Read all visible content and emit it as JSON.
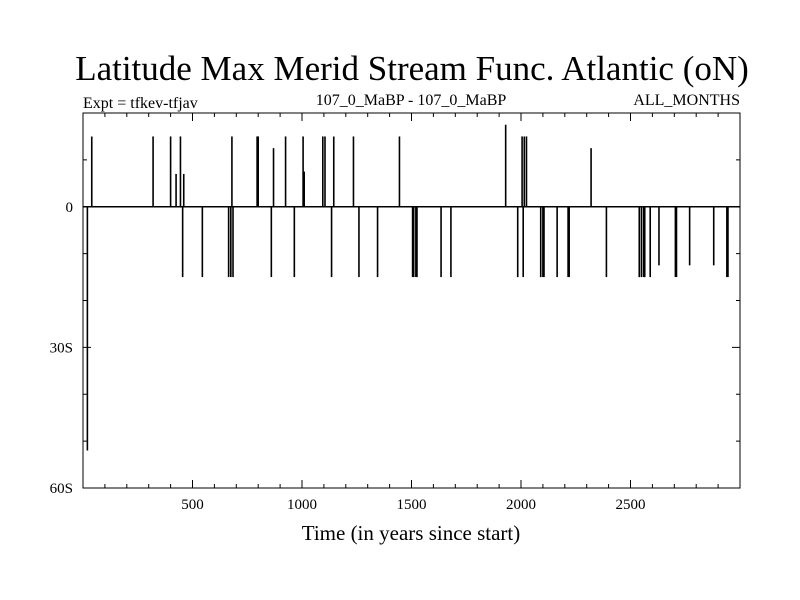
{
  "chart_data": {
    "type": "bar",
    "title": "Latitude Max Merid Stream Func. Atlantic (oN)",
    "subtitle_left": "Expt = tfkev-tfjav",
    "subtitle_center": "107_0_MaBP - 107_0_MaBP",
    "subtitle_right": "ALL_MONTHS",
    "xlabel": "Time (in years since start)",
    "ylabel": "",
    "xlim": [
      0,
      3000
    ],
    "ylim": [
      -60,
      20
    ],
    "x_ticks": [
      500,
      1000,
      1500,
      2000,
      2500
    ],
    "x_tick_labels": [
      "500",
      "1000",
      "1500",
      "2000",
      "2500"
    ],
    "y_ticks": [
      0,
      -30,
      -60
    ],
    "y_tick_labels": [
      "0",
      "30S",
      "60S"
    ],
    "grid": false,
    "zero_line": true,
    "series": [
      {
        "x": [
          20,
          40,
          320,
          400,
          425,
          445,
          455,
          460,
          545,
          665,
          675,
          680,
          685,
          795,
          800,
          860,
          870,
          925,
          965,
          1005,
          1010,
          1095,
          1105,
          1135,
          1145,
          1235,
          1260,
          1345,
          1445,
          1505,
          1510,
          1520,
          1525,
          1635,
          1680,
          1930,
          1985,
          2005,
          2010,
          2015,
          2025,
          2090,
          2100,
          2105,
          2165,
          2215,
          2220,
          2320,
          2390,
          2540,
          2550,
          2560,
          2565,
          2590,
          2630,
          2705,
          2710,
          2770,
          2880,
          2940,
          2945
        ],
        "values": [
          -52,
          15,
          15,
          15,
          7,
          15,
          -15,
          7,
          -15,
          -15,
          -15,
          15,
          -15,
          15,
          15,
          -15,
          12.5,
          15,
          -15,
          15,
          7.5,
          15,
          15,
          -15,
          15,
          15,
          -15,
          -15,
          15,
          -15,
          -15,
          -15,
          -15,
          -15,
          -15,
          17.5,
          -15,
          15,
          -15,
          15,
          15,
          -15,
          -15,
          -15,
          -15,
          -15,
          -15,
          12.5,
          -15,
          -15,
          -15,
          -15,
          -15,
          -15,
          -12.5,
          -15,
          -15,
          -12.5,
          -12.5,
          -15,
          -15
        ]
      }
    ]
  }
}
